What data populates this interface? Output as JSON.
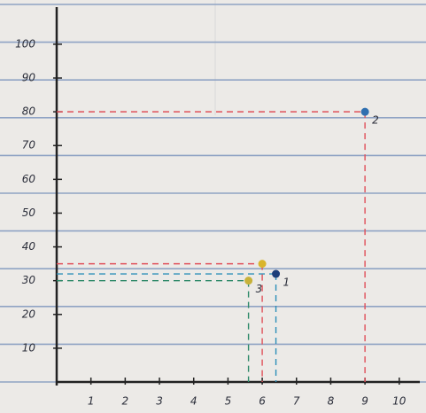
{
  "chart_data": {
    "type": "scatter",
    "x": [
      6.4,
      9,
      5.6,
      6
    ],
    "values": [
      32,
      80,
      30,
      35
    ],
    "point_labels": [
      "1",
      "2",
      "3",
      null
    ],
    "colors": [
      "#1d3f7a",
      "#2f6fb0",
      "#c8b23a",
      "#d9b52c"
    ],
    "guide_colors": [
      "#2b8fb8",
      "#e0505a",
      "#2f8a6a",
      "#e0505a"
    ],
    "xlim": [
      0,
      10.6
    ],
    "ylim": [
      0,
      111
    ],
    "xticks": [
      1,
      2,
      3,
      4,
      5,
      6,
      7,
      8,
      9,
      10
    ],
    "yticks": [
      10,
      20,
      30,
      40,
      50,
      60,
      70,
      80,
      90,
      100
    ]
  }
}
